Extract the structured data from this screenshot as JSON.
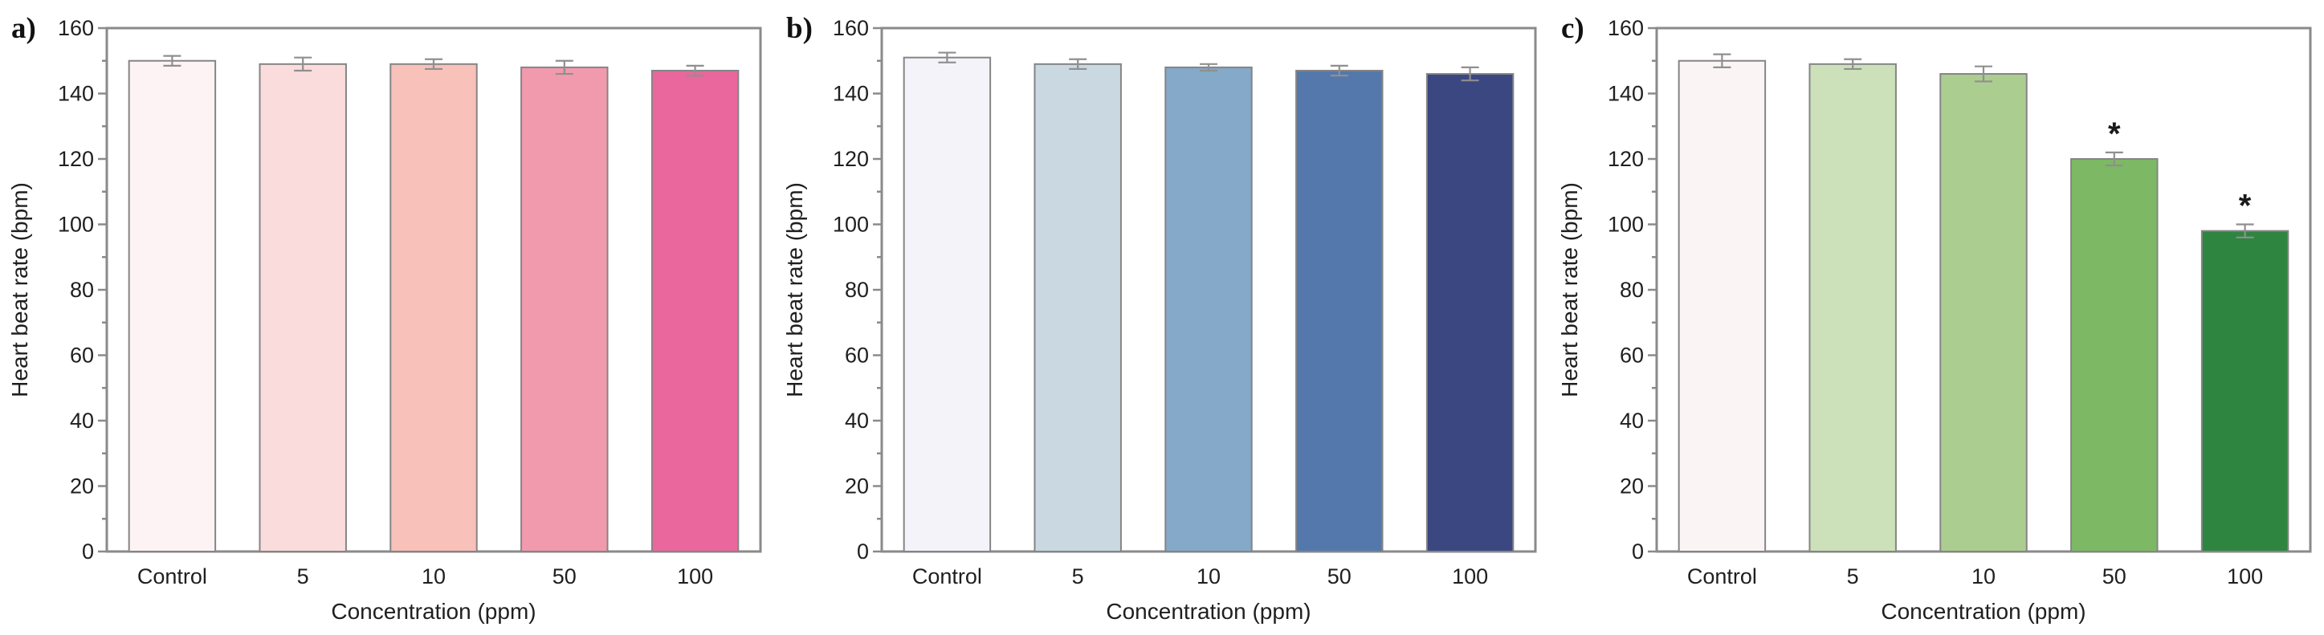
{
  "figure": {
    "background": "#ffffff",
    "axis_color": "#8a8a8a",
    "text_color": "#1f1f1f",
    "bar_edge_color": "#858585",
    "error_bar_color": "#8f8f8f",
    "significance_color": "#1a1a1a"
  },
  "chart_data": [
    {
      "type": "bar",
      "panel_label": "a)",
      "title": "",
      "xlabel": "Concentration (ppm)",
      "ylabel": "Heart beat rate (bpm)",
      "categories": [
        "Control",
        "5",
        "10",
        "50",
        "100"
      ],
      "values": [
        150,
        149,
        149,
        148,
        147
      ],
      "errors": [
        1.5,
        2,
        1.5,
        2,
        1.5
      ],
      "significance": [
        "",
        "",
        "",
        "",
        ""
      ],
      "bar_colors": [
        "#fdf3f5",
        "#fbdcdc",
        "#f8c1ba",
        "#f29aad",
        "#e9679c"
      ],
      "ylim": [
        0,
        160
      ],
      "ytick_major": 20,
      "ytick_minor": 10,
      "grid": false
    },
    {
      "type": "bar",
      "panel_label": "b)",
      "title": "",
      "xlabel": "Concentration (ppm)",
      "ylabel": "Heart beat rate (bpm)",
      "categories": [
        "Control",
        "5",
        "10",
        "50",
        "100"
      ],
      "values": [
        151,
        149,
        148,
        147,
        146
      ],
      "errors": [
        1.5,
        1.5,
        1,
        1.5,
        2
      ],
      "significance": [
        "",
        "",
        "",
        "",
        ""
      ],
      "bar_colors": [
        "#f3f3f9",
        "#c9d8e1",
        "#84a9c9",
        "#5478ab",
        "#3b4781"
      ],
      "ylim": [
        0,
        160
      ],
      "ytick_major": 20,
      "ytick_minor": 10,
      "grid": false
    },
    {
      "type": "bar",
      "panel_label": "c)",
      "title": "",
      "xlabel": "Concentration (ppm)",
      "ylabel": "Heart beat rate (bpm)",
      "categories": [
        "Control",
        "5",
        "10",
        "50",
        "100"
      ],
      "values": [
        150,
        149,
        146,
        120,
        98
      ],
      "errors": [
        2,
        1.5,
        2.3,
        2,
        2
      ],
      "significance": [
        "",
        "",
        "",
        "*",
        "*"
      ],
      "bar_colors": [
        "#faf4f5",
        "#cce1b9",
        "#accd90",
        "#7db964",
        "#2e8540"
      ],
      "ylim": [
        0,
        160
      ],
      "ytick_major": 20,
      "ytick_minor": 10,
      "grid": false
    }
  ]
}
